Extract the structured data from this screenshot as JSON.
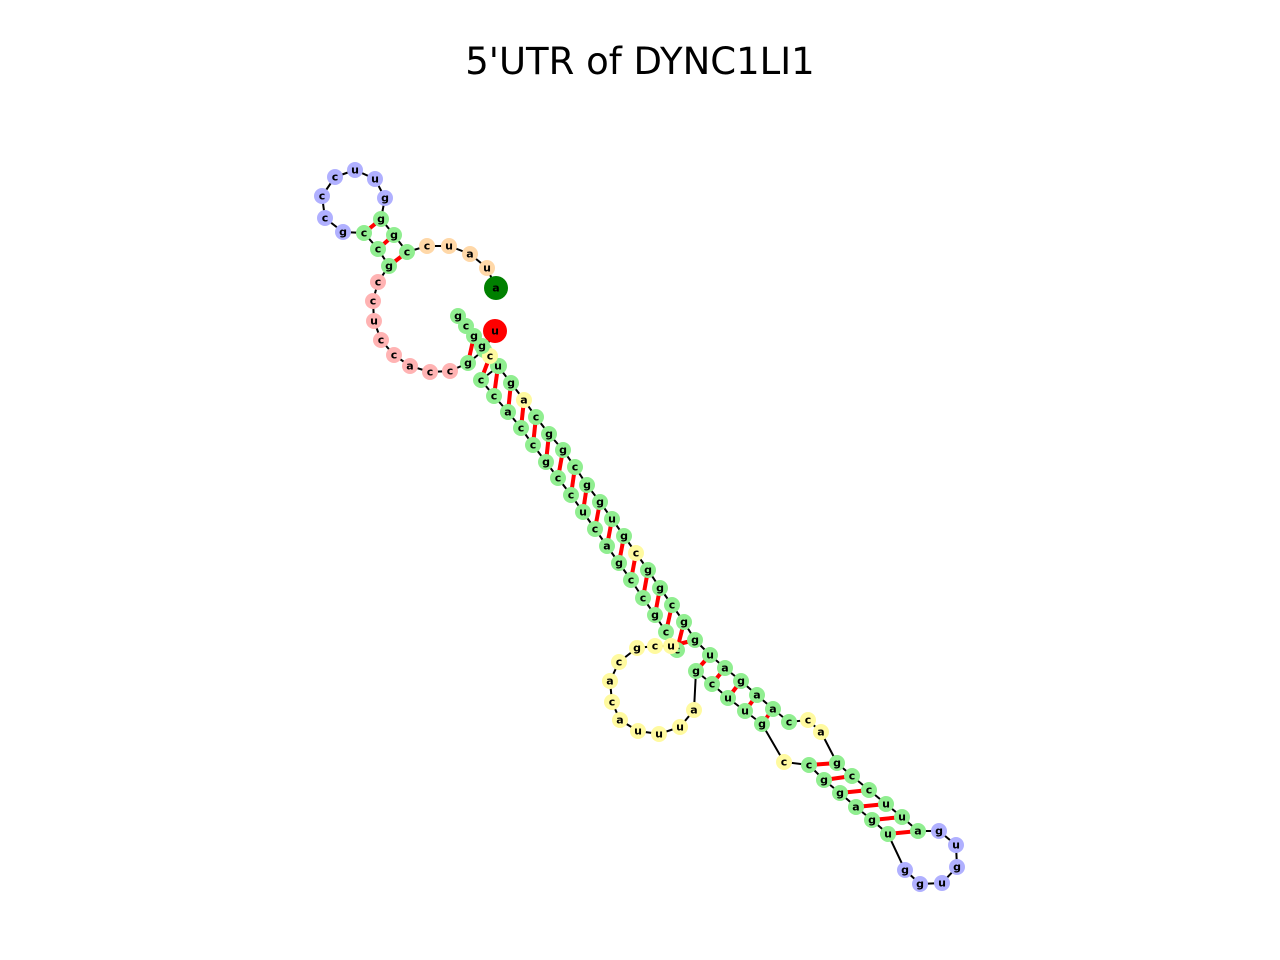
{
  "title": "5'UTR of DYNC1LI1",
  "colors": {
    "stem": "#90ee90",
    "hairpin_loop": "#b0b0ff",
    "multiloop": "#ffd8a8",
    "exterior_5p": "#ffb3b3",
    "interior_loop": "#fffaa0",
    "five_prime_end": "#ff0000",
    "three_prime_end": "#008000",
    "backbone": "#000000",
    "base_pair": "#ff0000"
  },
  "bases": [
    {
      "nt": "u",
      "region": "five_prime_end"
    },
    {
      "nt": "c",
      "region": "stem"
    },
    {
      "nt": "g",
      "region": "stem"
    },
    {
      "nt": "c",
      "region": "exterior_5p"
    },
    {
      "nt": "c",
      "region": "exterior_5p"
    },
    {
      "nt": "a",
      "region": "exterior_5p"
    },
    {
      "nt": "c",
      "region": "exterior_5p"
    },
    {
      "nt": "c",
      "region": "exterior_5p"
    },
    {
      "nt": "u",
      "region": "exterior_5p"
    },
    {
      "nt": "c",
      "region": "exterior_5p"
    },
    {
      "nt": "c",
      "region": "exterior_5p"
    },
    {
      "nt": "g",
      "region": "stem"
    },
    {
      "nt": "c",
      "region": "stem"
    },
    {
      "nt": "c",
      "region": "stem"
    },
    {
      "nt": "g",
      "region": "hairpin_loop"
    },
    {
      "nt": "c",
      "region": "hairpin_loop"
    },
    {
      "nt": "c",
      "region": "hairpin_loop"
    },
    {
      "nt": "c",
      "region": "hairpin_loop"
    },
    {
      "nt": "u",
      "region": "hairpin_loop"
    },
    {
      "nt": "u",
      "region": "hairpin_loop"
    },
    {
      "nt": "g",
      "region": "hairpin_loop"
    },
    {
      "nt": "g",
      "region": "stem"
    },
    {
      "nt": "g",
      "region": "stem"
    },
    {
      "nt": "c",
      "region": "stem"
    },
    {
      "nt": "c",
      "region": "multiloop"
    },
    {
      "nt": "u",
      "region": "multiloop"
    },
    {
      "nt": "a",
      "region": "multiloop"
    },
    {
      "nt": "u",
      "region": "multiloop"
    },
    {
      "nt": "a",
      "region": "three_prime_end"
    },
    {
      "nt": "c",
      "region": "stem"
    },
    {
      "nt": "c",
      "region": "stem"
    },
    {
      "nt": "c",
      "region": "stem"
    },
    {
      "nt": "a",
      "region": "stem"
    },
    {
      "nt": "c",
      "region": "stem"
    },
    {
      "nt": "c",
      "region": "stem"
    },
    {
      "nt": "g",
      "region": "stem"
    },
    {
      "nt": "c",
      "region": "stem"
    },
    {
      "nt": "c",
      "region": "stem"
    },
    {
      "nt": "u",
      "region": "stem"
    },
    {
      "nt": "c",
      "region": "stem"
    },
    {
      "nt": "a",
      "region": "stem"
    },
    {
      "nt": "g",
      "region": "stem"
    },
    {
      "nt": "c",
      "region": "stem"
    },
    {
      "nt": "c",
      "region": "stem"
    },
    {
      "nt": "g",
      "region": "stem"
    },
    {
      "nt": "c",
      "region": "stem"
    },
    {
      "nt": "c",
      "region": "stem"
    },
    {
      "nt": "u",
      "region": "interior_loop"
    },
    {
      "nt": "c",
      "region": "interior_loop"
    },
    {
      "nt": "g",
      "region": "interior_loop"
    },
    {
      "nt": "c",
      "region": "interior_loop"
    },
    {
      "nt": "a",
      "region": "interior_loop"
    },
    {
      "nt": "c",
      "region": "interior_loop"
    },
    {
      "nt": "a",
      "region": "interior_loop"
    },
    {
      "nt": "u",
      "region": "interior_loop"
    },
    {
      "nt": "u",
      "region": "interior_loop"
    },
    {
      "nt": "u",
      "region": "interior_loop"
    },
    {
      "nt": "a",
      "region": "interior_loop"
    },
    {
      "nt": "g",
      "region": "stem"
    },
    {
      "nt": "c",
      "region": "stem"
    },
    {
      "nt": "u",
      "region": "stem"
    },
    {
      "nt": "u",
      "region": "stem"
    },
    {
      "nt": "g",
      "region": "stem"
    },
    {
      "nt": "c",
      "region": "interior_loop"
    },
    {
      "nt": "c",
      "region": "stem"
    },
    {
      "nt": "g",
      "region": "stem"
    },
    {
      "nt": "g",
      "region": "stem"
    },
    {
      "nt": "a",
      "region": "stem"
    },
    {
      "nt": "g",
      "region": "stem"
    },
    {
      "nt": "u",
      "region": "stem"
    },
    {
      "nt": "g",
      "region": "hairpin_loop"
    },
    {
      "nt": "g",
      "region": "hairpin_loop"
    },
    {
      "nt": "u",
      "region": "hairpin_loop"
    },
    {
      "nt": "g",
      "region": "hairpin_loop"
    },
    {
      "nt": "u",
      "region": "hairpin_loop"
    },
    {
      "nt": "g",
      "region": "hairpin_loop"
    },
    {
      "nt": "a",
      "region": "stem"
    },
    {
      "nt": "u",
      "region": "stem"
    },
    {
      "nt": "u",
      "region": "stem"
    },
    {
      "nt": "c",
      "region": "stem"
    },
    {
      "nt": "c",
      "region": "stem"
    },
    {
      "nt": "g",
      "region": "stem"
    },
    {
      "nt": "a",
      "region": "interior_loop"
    },
    {
      "nt": "c",
      "region": "interior_loop"
    },
    {
      "nt": "c",
      "region": "stem"
    },
    {
      "nt": "a",
      "region": "stem"
    },
    {
      "nt": "a",
      "region": "stem"
    },
    {
      "nt": "g",
      "region": "stem"
    },
    {
      "nt": "a",
      "region": "stem"
    },
    {
      "nt": "u",
      "region": "stem"
    },
    {
      "nt": "g",
      "region": "stem"
    },
    {
      "nt": "g",
      "region": "stem"
    },
    {
      "nt": "c",
      "region": "stem"
    },
    {
      "nt": "g",
      "region": "stem"
    },
    {
      "nt": "g",
      "region": "stem"
    },
    {
      "nt": "c",
      "region": "interior_loop"
    },
    {
      "nt": "g",
      "region": "stem"
    },
    {
      "nt": "u",
      "region": "stem"
    },
    {
      "nt": "g",
      "region": "stem"
    },
    {
      "nt": "g",
      "region": "stem"
    },
    {
      "nt": "c",
      "region": "stem"
    },
    {
      "nt": "g",
      "region": "stem"
    },
    {
      "nt": "g",
      "region": "stem"
    },
    {
      "nt": "c",
      "region": "stem"
    },
    {
      "nt": "a",
      "region": "interior_loop"
    },
    {
      "nt": "g",
      "region": "stem"
    },
    {
      "nt": "u",
      "region": "stem"
    },
    {
      "nt": "c",
      "region": "interior_loop"
    },
    {
      "nt": "g",
      "region": "stem"
    },
    {
      "nt": "g",
      "region": "stem"
    },
    {
      "nt": "c",
      "region": "stem"
    },
    {
      "nt": "g",
      "region": "stem"
    }
  ],
  "pairs": [
    [
      1,
      110
    ],
    [
      2,
      109
    ],
    [
      11,
      23
    ],
    [
      12,
      22
    ],
    [
      13,
      21
    ],
    [
      29,
      108
    ],
    [
      30,
      107
    ],
    [
      31,
      106
    ],
    [
      32,
      105
    ],
    [
      33,
      104
    ],
    [
      34,
      103
    ],
    [
      35,
      102
    ],
    [
      36,
      101
    ],
    [
      37,
      100
    ],
    [
      38,
      99
    ],
    [
      39,
      98
    ],
    [
      40,
      97
    ],
    [
      41,
      96
    ],
    [
      42,
      95
    ],
    [
      43,
      94
    ],
    [
      44,
      93
    ],
    [
      45,
      92
    ],
    [
      46,
      91
    ],
    [
      47,
      90
    ],
    [
      58,
      89
    ],
    [
      59,
      88
    ],
    [
      60,
      87
    ],
    [
      61,
      86
    ],
    [
      62,
      85
    ],
    [
      64,
      81
    ],
    [
      65,
      80
    ],
    [
      66,
      79
    ],
    [
      67,
      78
    ],
    [
      68,
      77
    ],
    [
      69,
      76
    ]
  ]
}
